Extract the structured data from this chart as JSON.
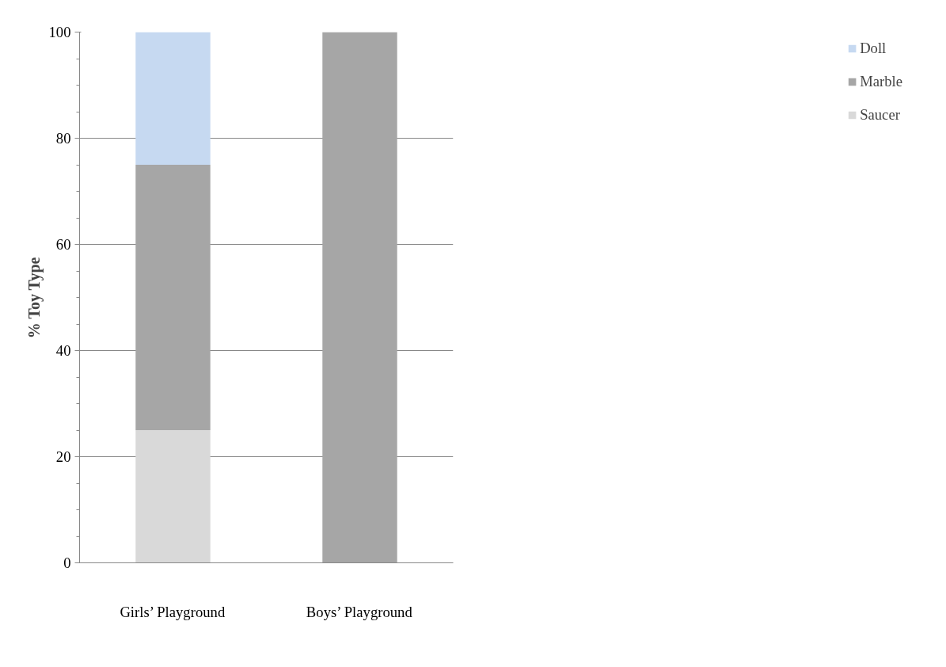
{
  "chart_data": {
    "type": "bar",
    "stacked": true,
    "ylabel": "% Toy Type",
    "categories": [
      "Girls’ Playground",
      "Boys’ Playground"
    ],
    "series": [
      {
        "name": "Saucer",
        "color": "#d9d9d9",
        "values": [
          25,
          0
        ]
      },
      {
        "name": "Marble",
        "color": "#a6a6a6",
        "values": [
          50,
          100
        ]
      },
      {
        "name": "Doll",
        "color": "#c6d9f1",
        "values": [
          25,
          0
        ]
      }
    ],
    "ylim": [
      0,
      100
    ],
    "yticks": [
      0,
      20,
      40,
      60,
      80,
      100
    ],
    "grid": "y",
    "legend": "right"
  }
}
